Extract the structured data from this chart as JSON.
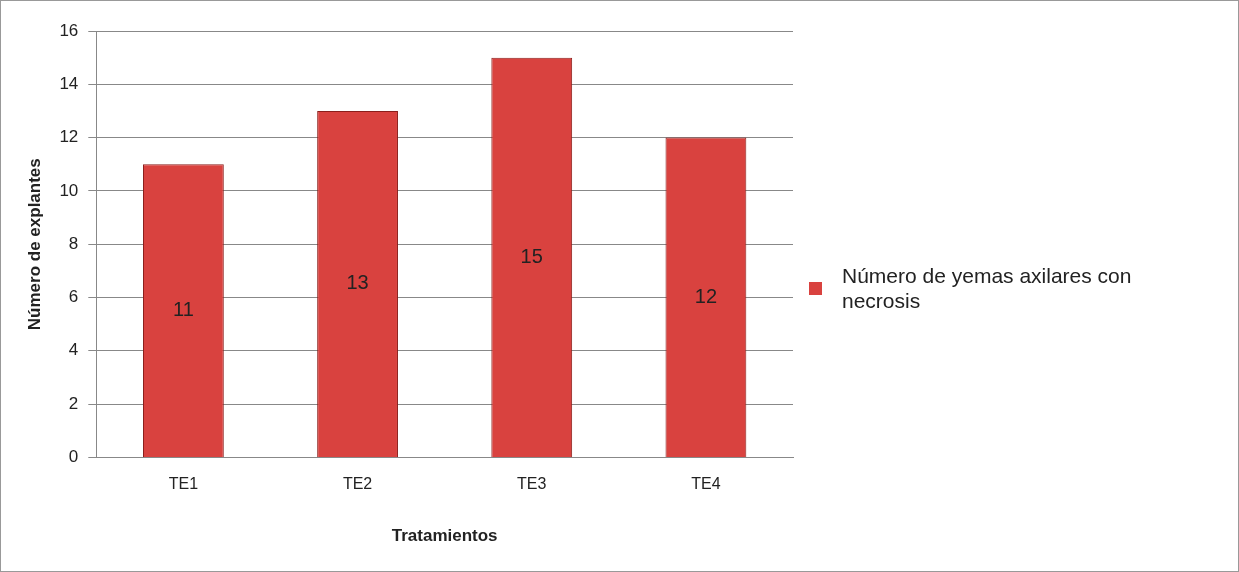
{
  "chart_data": {
    "type": "bar",
    "xlabel": "Tratamientos",
    "ylabel": "Número de explantes",
    "categories": [
      "TE1",
      "TE2",
      "TE3",
      "TE4"
    ],
    "series": [
      {
        "name": "Número de yemas axilares con necrosis",
        "color": "#d9423f",
        "values": [
          11,
          13,
          15,
          12
        ]
      }
    ],
    "ylim": [
      0,
      16
    ],
    "yticks": [
      0,
      2,
      4,
      6,
      8,
      10,
      12,
      14,
      16
    ],
    "grid": "y",
    "legend": "right",
    "data_labels": true
  }
}
